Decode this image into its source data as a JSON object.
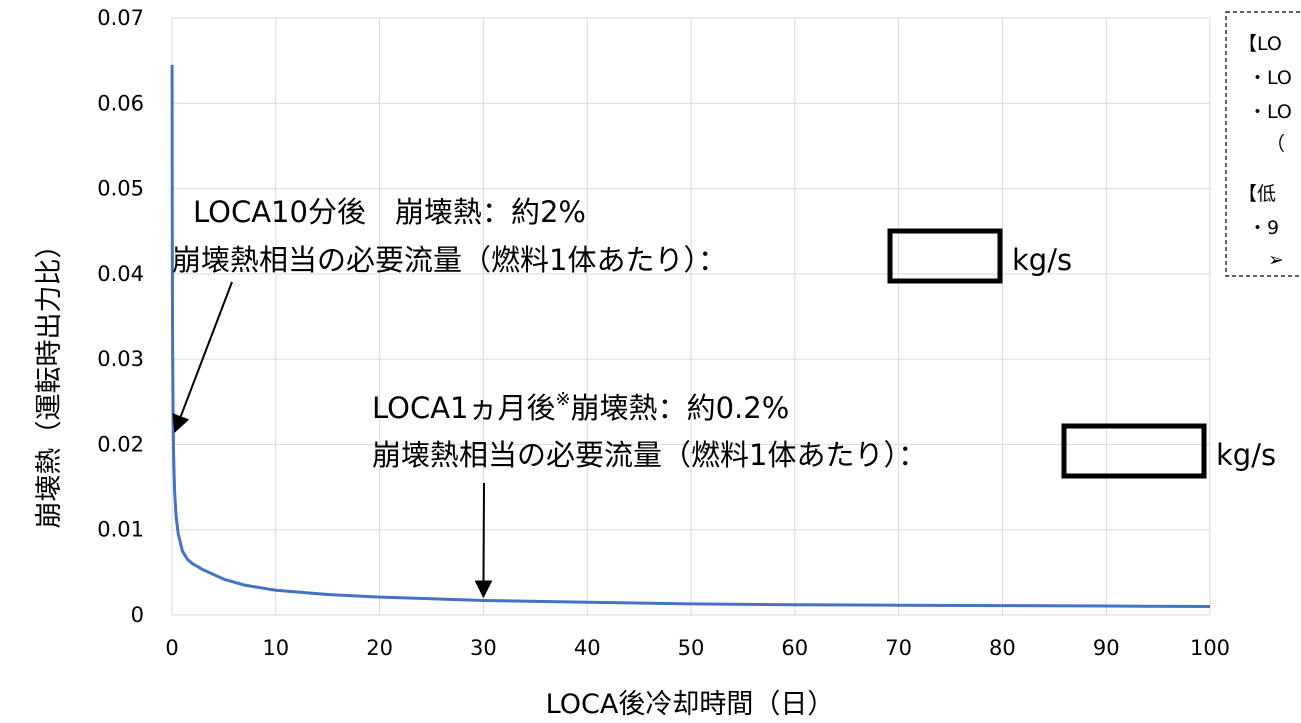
{
  "chart_data": {
    "type": "line",
    "xlabel": "LOCA後冷却時間（日）",
    "ylabel": "崩壊熱（運転時出力比）",
    "xlim": [
      0,
      100
    ],
    "ylim": [
      0,
      0.07
    ],
    "x_ticks": [
      "0",
      "10",
      "20",
      "30",
      "40",
      "50",
      "60",
      "70",
      "80",
      "90",
      "100"
    ],
    "y_ticks": [
      "0",
      "0.01",
      "0.02",
      "0.03",
      "0.04",
      "0.05",
      "0.06",
      "0.07"
    ],
    "grid": true,
    "series": [
      {
        "color": "#4472C4",
        "points": [
          [
            0.01,
            0.0645
          ],
          [
            0.02,
            0.05
          ],
          [
            0.04,
            0.038
          ],
          [
            0.06,
            0.031
          ],
          [
            0.1,
            0.024
          ],
          [
            0.15,
            0.019
          ],
          [
            0.25,
            0.0145
          ],
          [
            0.4,
            0.0115
          ],
          [
            0.6,
            0.0095
          ],
          [
            1,
            0.0075
          ],
          [
            1.5,
            0.0065
          ],
          [
            2,
            0.006
          ],
          [
            3,
            0.0053
          ],
          [
            5,
            0.0042
          ],
          [
            7,
            0.0035
          ],
          [
            10,
            0.0029
          ],
          [
            15,
            0.0024
          ],
          [
            20,
            0.0021
          ],
          [
            25,
            0.0019
          ],
          [
            30,
            0.0017
          ],
          [
            40,
            0.0015
          ],
          [
            50,
            0.0013
          ],
          [
            60,
            0.0012
          ],
          [
            70,
            0.00115
          ],
          [
            80,
            0.0011
          ],
          [
            90,
            0.00105
          ],
          [
            100,
            0.001
          ]
        ]
      }
    ],
    "annotations": [
      {
        "line1": "LOCA10分後　崩壊熱：約2%",
        "line2": "崩壊熱相当の必要流量（燃料1体あたり）：",
        "unit": "kg/s",
        "arrow_target": [
          0.1,
          0.022
        ]
      },
      {
        "line1_pre": "LOCA1ヵ月後",
        "line1_sup": "※",
        "line1_post": "崩壊熱：約0.2%",
        "line2": "崩壊熱相当の必要流量（燃料1体あたり）：",
        "unit": "kg/s",
        "arrow_target": [
          30,
          0.0017
        ]
      }
    ]
  },
  "notes": [
    "【LO",
    "・LO",
    "・LO",
    "（",
    "【低",
    "・9",
    "➢"
  ]
}
